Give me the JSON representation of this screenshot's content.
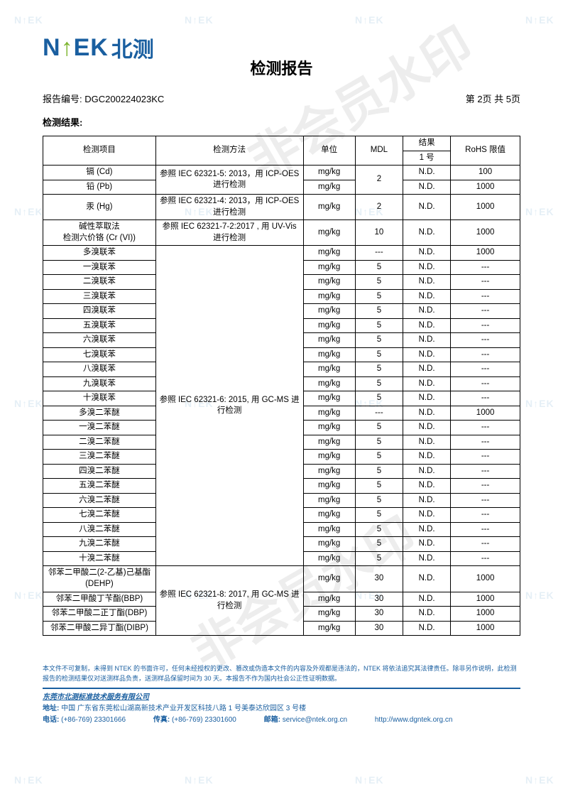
{
  "watermark_main": "非会员水印",
  "watermark_small": "N↑EK",
  "logo": {
    "en": "N↑EK",
    "cn": "北测"
  },
  "title": "检测报告",
  "report_no_label": "报告编号:",
  "report_no": "DGC200224023KC",
  "page_info": "第 2页  共 5页",
  "results_label": "检测结果:",
  "table": {
    "headers": {
      "item": "检测项目",
      "method": "检测方法",
      "unit": "单位",
      "mdl": "MDL",
      "result_top": "结果",
      "result_sub": "1 号",
      "rohs": "RoHS 限值"
    },
    "groups": [
      {
        "method": "参照 IEC 62321-5: 2013，用 ICP-OES 进行检测",
        "mdl_shared": "2",
        "rows": [
          {
            "item": "镉 (Cd)",
            "unit": "mg/kg",
            "result": "N.D.",
            "rohs": "100"
          },
          {
            "item": "铅 (Pb)",
            "unit": "mg/kg",
            "result": "N.D.",
            "rohs": "1000"
          }
        ]
      },
      {
        "method": "参照 IEC 62321-4: 2013，用 ICP-OES 进行检测",
        "rows": [
          {
            "item": "汞 (Hg)",
            "unit": "mg/kg",
            "mdl": "2",
            "result": "N.D.",
            "rohs": "1000"
          }
        ]
      },
      {
        "method": "参照 IEC 62321-7-2:2017 , 用 UV-Vis 进行检测",
        "rows": [
          {
            "item": "碱性萃取法\n检测六价铬 (Cr (VI))",
            "unit": "mg/kg",
            "mdl": "10",
            "result": "N.D.",
            "rohs": "1000"
          }
        ]
      },
      {
        "method": "参照 IEC 62321-6: 2015, 用 GC-MS 进行检测",
        "rows": [
          {
            "item": "多溴联苯",
            "unit": "mg/kg",
            "mdl": "---",
            "result": "N.D.",
            "rohs": "1000"
          },
          {
            "item": "一溴联苯",
            "unit": "mg/kg",
            "mdl": "5",
            "result": "N.D.",
            "rohs": "---"
          },
          {
            "item": "二溴联苯",
            "unit": "mg/kg",
            "mdl": "5",
            "result": "N.D.",
            "rohs": "---"
          },
          {
            "item": "三溴联苯",
            "unit": "mg/kg",
            "mdl": "5",
            "result": "N.D.",
            "rohs": "---"
          },
          {
            "item": "四溴联苯",
            "unit": "mg/kg",
            "mdl": "5",
            "result": "N.D.",
            "rohs": "---"
          },
          {
            "item": "五溴联苯",
            "unit": "mg/kg",
            "mdl": "5",
            "result": "N.D.",
            "rohs": "---"
          },
          {
            "item": "六溴联苯",
            "unit": "mg/kg",
            "mdl": "5",
            "result": "N.D.",
            "rohs": "---"
          },
          {
            "item": "七溴联苯",
            "unit": "mg/kg",
            "mdl": "5",
            "result": "N.D.",
            "rohs": "---"
          },
          {
            "item": "八溴联苯",
            "unit": "mg/kg",
            "mdl": "5",
            "result": "N.D.",
            "rohs": "---"
          },
          {
            "item": "九溴联苯",
            "unit": "mg/kg",
            "mdl": "5",
            "result": "N.D.",
            "rohs": "---"
          },
          {
            "item": "十溴联苯",
            "unit": "mg/kg",
            "mdl": "5",
            "result": "N.D.",
            "rohs": "---"
          },
          {
            "item": "多溴二苯醚",
            "unit": "mg/kg",
            "mdl": "---",
            "result": "N.D.",
            "rohs": "1000"
          },
          {
            "item": "一溴二苯醚",
            "unit": "mg/kg",
            "mdl": "5",
            "result": "N.D.",
            "rohs": "---"
          },
          {
            "item": "二溴二苯醚",
            "unit": "mg/kg",
            "mdl": "5",
            "result": "N.D.",
            "rohs": "---"
          },
          {
            "item": "三溴二苯醚",
            "unit": "mg/kg",
            "mdl": "5",
            "result": "N.D.",
            "rohs": "---"
          },
          {
            "item": "四溴二苯醚",
            "unit": "mg/kg",
            "mdl": "5",
            "result": "N.D.",
            "rohs": "---"
          },
          {
            "item": "五溴二苯醚",
            "unit": "mg/kg",
            "mdl": "5",
            "result": "N.D.",
            "rohs": "---"
          },
          {
            "item": "六溴二苯醚",
            "unit": "mg/kg",
            "mdl": "5",
            "result": "N.D.",
            "rohs": "---"
          },
          {
            "item": "七溴二苯醚",
            "unit": "mg/kg",
            "mdl": "5",
            "result": "N.D.",
            "rohs": "---"
          },
          {
            "item": "八溴二苯醚",
            "unit": "mg/kg",
            "mdl": "5",
            "result": "N.D.",
            "rohs": "---"
          },
          {
            "item": "九溴二苯醚",
            "unit": "mg/kg",
            "mdl": "5",
            "result": "N.D.",
            "rohs": "---"
          },
          {
            "item": "十溴二苯醚",
            "unit": "mg/kg",
            "mdl": "5",
            "result": "N.D.",
            "rohs": "---"
          }
        ]
      },
      {
        "method": "参照 IEC 62321-8: 2017, 用 GC-MS 进行检测",
        "rows": [
          {
            "item": "邻苯二甲酸二(2-乙基)己基酯(DEHP)",
            "unit": "mg/kg",
            "mdl": "30",
            "result": "N.D.",
            "rohs": "1000"
          },
          {
            "item": "邻苯二甲酸丁苄酯(BBP)",
            "unit": "mg/kg",
            "mdl": "30",
            "result": "N.D.",
            "rohs": "1000"
          },
          {
            "item": "邻苯二甲酸二正丁酯(DBP)",
            "unit": "mg/kg",
            "mdl": "30",
            "result": "N.D.",
            "rohs": "1000"
          },
          {
            "item": "邻苯二甲酸二异丁酯(DIBP)",
            "unit": "mg/kg",
            "mdl": "30",
            "result": "N.D.",
            "rohs": "1000"
          }
        ]
      }
    ]
  },
  "disclaimer": "本文件不可复制，未得到 NTEK 的书面许可，任何未经授权的更改、篡改或伪造本文件的内容及外观都是违法的，NTEK 将依法追究其法律责任。除非另作说明，此检测报告的检测结果仅对送测样品负责，送测样品保留时间为 30 天。本报告不作为国内社会公正性证明数据。",
  "footer": {
    "company": "东莞市北测标准技术服务有限公司",
    "addr_label": "地址:",
    "addr": "中国 广东省东莞松山湖高新技术产业开发区科技八路 1 号美泰达欣园区 3 号楼",
    "tel_label": "电话:",
    "tel": "(+86-769) 23301666",
    "fax_label": "传真:",
    "fax": "(+86-769) 23301600",
    "email_label": "邮箱:",
    "email": "service@ntek.org.cn",
    "web": "http://www.dgntek.org.cn"
  },
  "colors": {
    "brand_blue": "#1a5fa0",
    "brand_green": "#7db52e",
    "watermark_gray": "rgba(0,0,0,0.07)"
  }
}
